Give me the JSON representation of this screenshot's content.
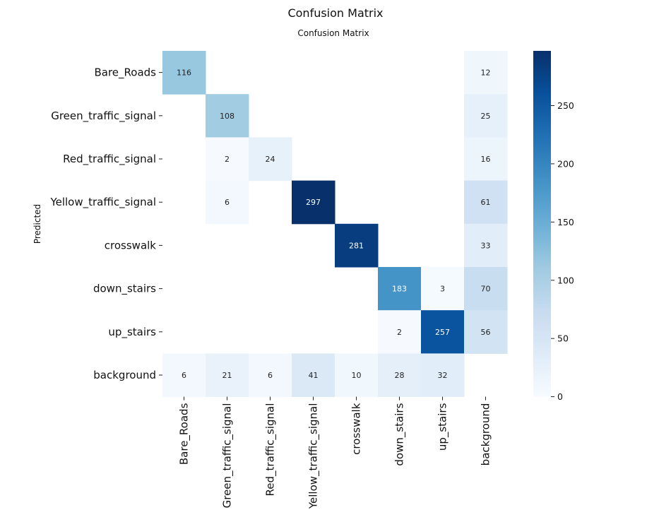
{
  "figure_title": "Confusion Matrix",
  "chart_data": {
    "type": "heatmap",
    "title": "Confusion Matrix",
    "ylabel": "Predicted",
    "xlabel": "",
    "row_labels": [
      "Bare_Roads",
      "Green_traffic_signal",
      "Red_traffic_signal",
      "Yellow_traffic_signal",
      "crosswalk",
      "down_stairs",
      "up_stairs",
      "background"
    ],
    "col_labels": [
      "Bare_Roads",
      "Green_traffic_signal",
      "Red_traffic_signal",
      "Yellow_traffic_signal",
      "crosswalk",
      "down_stairs",
      "up_stairs",
      "background"
    ],
    "values": [
      [
        116,
        null,
        null,
        null,
        null,
        null,
        null,
        12
      ],
      [
        null,
        108,
        null,
        null,
        null,
        null,
        null,
        25
      ],
      [
        null,
        2,
        24,
        null,
        null,
        null,
        null,
        16
      ],
      [
        null,
        6,
        null,
        297,
        null,
        null,
        null,
        61
      ],
      [
        null,
        null,
        null,
        null,
        281,
        null,
        null,
        33
      ],
      [
        null,
        null,
        null,
        null,
        null,
        183,
        3,
        70
      ],
      [
        null,
        null,
        null,
        null,
        null,
        2,
        257,
        56
      ],
      [
        6,
        21,
        6,
        41,
        10,
        28,
        32,
        null
      ]
    ],
    "colormap": "Blues",
    "colorbar": {
      "range": [
        0,
        297
      ],
      "ticks": [
        0,
        50,
        100,
        150,
        200,
        250
      ]
    }
  }
}
